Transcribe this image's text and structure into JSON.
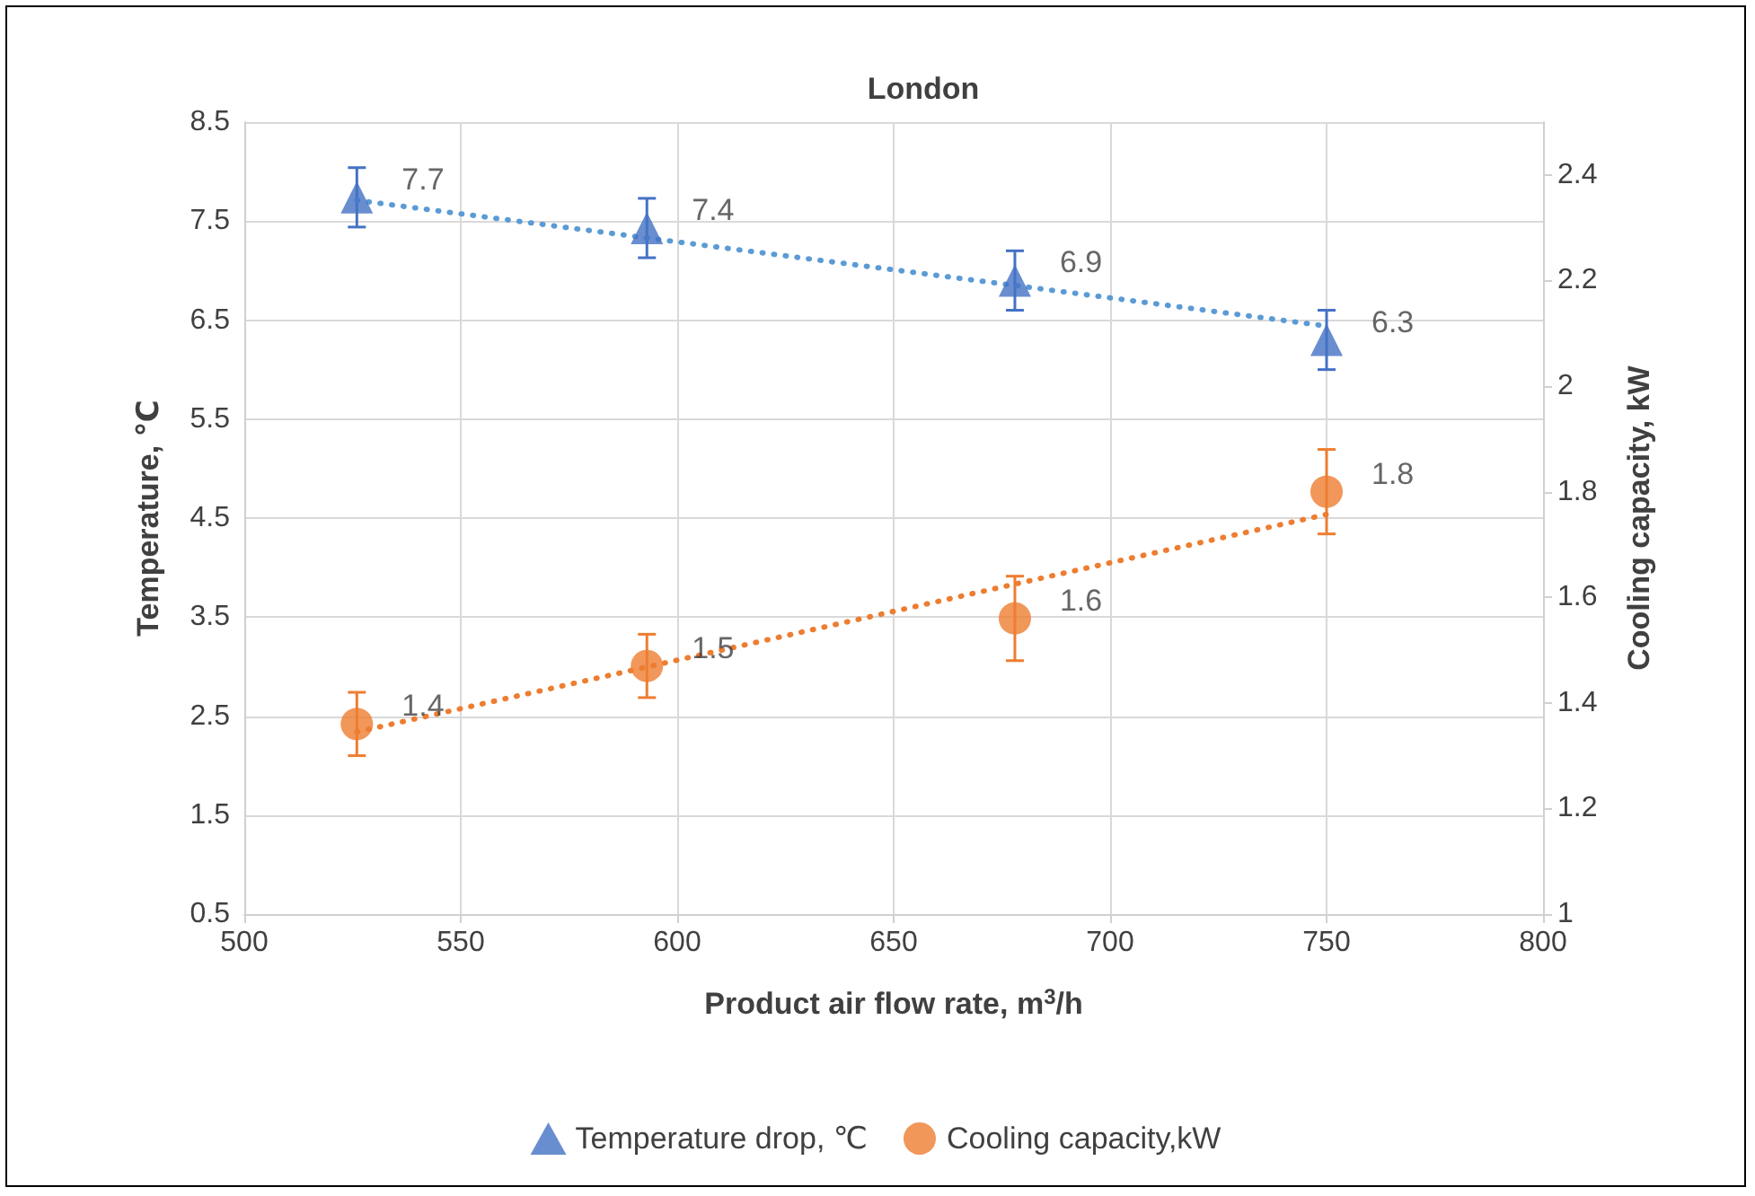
{
  "chart_data": {
    "type": "scatter",
    "title": "London",
    "xlabel": "Product air flow rate, m$^{3}$/h",
    "ylabel": "Temperature, ℃",
    "y2label": "Cooling capacity, kW",
    "x": [
      526,
      593,
      678,
      750
    ],
    "series": [
      {
        "name": "Temperature drop, ℃",
        "color": "#4472c4",
        "values": [
          7.74,
          7.43,
          6.9,
          6.3
        ],
        "value_labels": [
          "7.7",
          "7.4",
          "6.9",
          "6.3"
        ],
        "errors": [
          0.3,
          0.3,
          0.3,
          0.3
        ],
        "marker": "triangle"
      },
      {
        "name": "Cooling capacity,kW",
        "color": "#ed7d31",
        "values": [
          1.36,
          1.47,
          1.56,
          1.8
        ],
        "value_labels": [
          "1.4",
          "1.5",
          "1.6",
          "1.8"
        ],
        "errors": [
          0.06,
          0.06,
          0.08,
          0.08
        ],
        "marker": "circle",
        "axis": "y2"
      },
      {
        "type": "line",
        "color": "#5b9bd5",
        "values": [
          7.71,
          7.33,
          6.85,
          6.44
        ],
        "line_style": "dotted",
        "marker": "none"
      },
      {
        "type": "line",
        "color": "#ed7d31",
        "values": [
          1.345,
          1.468,
          1.625,
          1.757
        ],
        "line_style": "dotted",
        "marker": "none",
        "axis": "y2"
      }
    ],
    "xlim": [
      500,
      800
    ],
    "xticks": [
      500,
      550,
      600,
      650,
      700,
      750,
      800
    ],
    "ylim": [
      0.5,
      8.5
    ],
    "yticks": [
      0.5,
      1.5,
      2.5,
      3.5,
      4.5,
      5.5,
      6.5,
      7.5,
      8.5
    ],
    "y2lim": [
      1,
      2.5
    ],
    "y2ticks": [
      1,
      1.2,
      1.4,
      1.6,
      1.8,
      2,
      2.2,
      2.4
    ],
    "grid": true,
    "legend": "bottom"
  }
}
